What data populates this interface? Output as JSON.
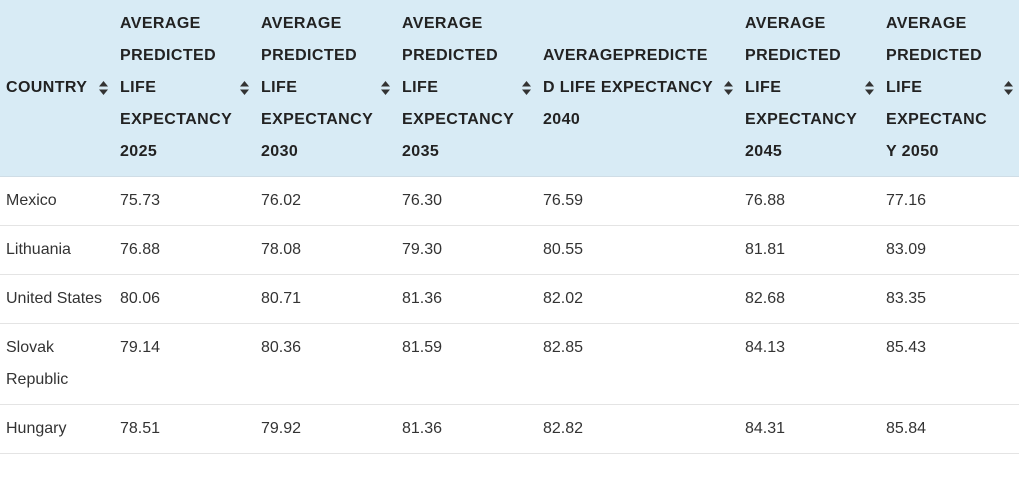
{
  "table": {
    "headers": [
      {
        "label": "COUNTRY"
      },
      {
        "label": "AVERAGE PREDICTED LIFE EXPECTANCY 2025"
      },
      {
        "label": "AVERAGE PREDICTED LIFE EXPECTANCY 2030"
      },
      {
        "label": "AVERAGE PREDICTED LIFE EXPECTANCY 2035"
      },
      {
        "label": "AVERAGEPREDICTED LIFE EXPECTANCY 2040"
      },
      {
        "label": "AVERAGE PREDICTED LIFE EXPECTANCY 2045"
      },
      {
        "label": "AVERAGE PREDICTED LIFE EXPECTANCY 2050"
      }
    ],
    "rows": [
      [
        "Mexico",
        "75.73",
        "76.02",
        "76.30",
        "76.59",
        "76.88",
        "77.16"
      ],
      [
        "Lithuania",
        "76.88",
        "78.08",
        "79.30",
        "80.55",
        "81.81",
        "83.09"
      ],
      [
        "United States",
        "80.06",
        "80.71",
        "81.36",
        "82.02",
        "82.68",
        "83.35"
      ],
      [
        "Slovak Republic",
        "79.14",
        "80.36",
        "81.59",
        "82.85",
        "84.13",
        "85.43"
      ],
      [
        "Hungary",
        "78.51",
        "79.92",
        "81.36",
        "82.82",
        "84.31",
        "85.84"
      ]
    ]
  },
  "colors": {
    "header_bg": "#d8ebf5",
    "row_border": "#e4e4e4",
    "text": "#333333"
  },
  "icons": {
    "sort": "sort-icon"
  }
}
